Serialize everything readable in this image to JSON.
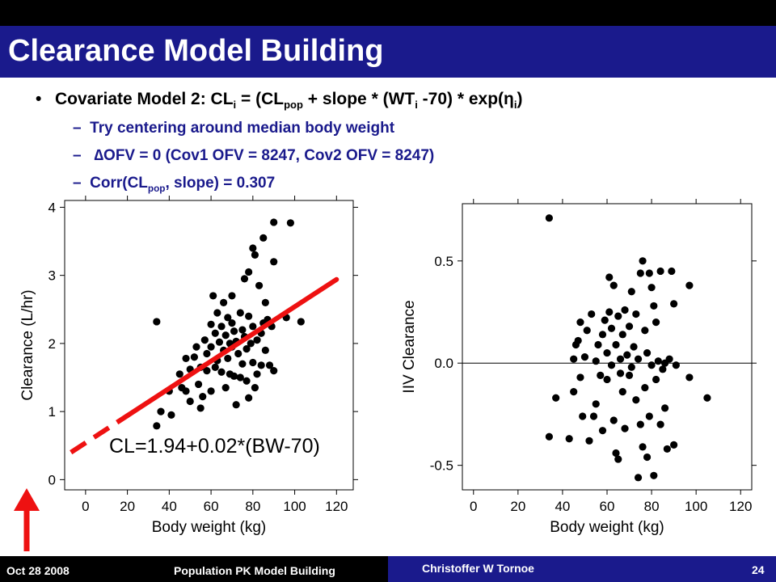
{
  "slide": {
    "title": "Clearance Model Building",
    "bullet": {
      "prefix": "Covariate Model 2: CL",
      "sub1": "i",
      "mid1": " = (CL",
      "sub2": "pop",
      "mid2": " + slope * (WT",
      "sub3": "i",
      "mid3": " -70) * exp(",
      "eta": "η",
      "sub4": "i",
      "suffix": ")"
    },
    "subbullets": [
      {
        "dash": "–",
        "text": "Try centering around median body weight"
      },
      {
        "dash": "–",
        "text": "∆OFV = 0 (Cov1 OFV = 8247, Cov2 OFV = 8247)"
      },
      {
        "dash": "–",
        "prefix": "Corr(CL",
        "sub": "pop",
        "suffix": ", slope) = 0.307"
      }
    ]
  },
  "footer": {
    "date": "Oct 28 2008",
    "course": "Population PK Model Building",
    "author": "Christoffer W Tornoe",
    "page": "24"
  },
  "colors": {
    "title_bar": "#1a1a8c",
    "subbullet_text": "#1a1a8c",
    "fit_line": "#ee1111",
    "arrow": "#ee1111"
  },
  "chart_data": [
    {
      "type": "scatter",
      "xlabel": "Body weight (kg)",
      "ylabel": "Clearance (L/hr)",
      "xlim": [
        -10,
        128
      ],
      "ylim": [
        -0.15,
        4.1
      ],
      "xticks": [
        "0",
        "20",
        "40",
        "60",
        "80",
        "100",
        "120"
      ],
      "yticks": [
        "0",
        "1",
        "2",
        "3",
        "4"
      ],
      "annotation": "CL=1.94+0.02*(BW-70)",
      "fit_line": {
        "intercept": 1.94,
        "slope": 0.02,
        "center": 70,
        "solid_range": [
          20,
          120
        ],
        "dashed_range": [
          -7,
          20
        ]
      },
      "points": [
        [
          34,
          2.32
        ],
        [
          34,
          0.79
        ],
        [
          36,
          1.0
        ],
        [
          40,
          1.3
        ],
        [
          41,
          0.95
        ],
        [
          45,
          1.55
        ],
        [
          46,
          1.35
        ],
        [
          48,
          1.3
        ],
        [
          48,
          1.78
        ],
        [
          50,
          1.15
        ],
        [
          50,
          1.62
        ],
        [
          52,
          1.8
        ],
        [
          53,
          1.95
        ],
        [
          54,
          1.4
        ],
        [
          55,
          1.05
        ],
        [
          55,
          1.65
        ],
        [
          56,
          1.22
        ],
        [
          57,
          2.05
        ],
        [
          58,
          1.6
        ],
        [
          58,
          1.85
        ],
        [
          60,
          1.95
        ],
        [
          60,
          1.3
        ],
        [
          60,
          2.28
        ],
        [
          61,
          2.7
        ],
        [
          62,
          1.65
        ],
        [
          62,
          2.15
        ],
        [
          63,
          2.45
        ],
        [
          63,
          1.75
        ],
        [
          64,
          2.02
        ],
        [
          65,
          1.58
        ],
        [
          65,
          2.25
        ],
        [
          66,
          1.9
        ],
        [
          66,
          2.6
        ],
        [
          67,
          1.35
        ],
        [
          67,
          2.12
        ],
        [
          68,
          1.78
        ],
        [
          68,
          2.38
        ],
        [
          69,
          2.0
        ],
        [
          69,
          1.55
        ],
        [
          70,
          1.95
        ],
        [
          70,
          2.7
        ],
        [
          70,
          2.3
        ],
        [
          71,
          1.52
        ],
        [
          71,
          2.18
        ],
        [
          72,
          1.1
        ],
        [
          72,
          2.03
        ],
        [
          73,
          1.85
        ],
        [
          74,
          1.5
        ],
        [
          74,
          2.45
        ],
        [
          75,
          2.2
        ],
        [
          75,
          1.7
        ],
        [
          76,
          2.95
        ],
        [
          76,
          2.1
        ],
        [
          77,
          1.92
        ],
        [
          77,
          1.45
        ],
        [
          78,
          3.05
        ],
        [
          78,
          2.4
        ],
        [
          78,
          1.2
        ],
        [
          79,
          2.0
        ],
        [
          80,
          1.72
        ],
        [
          80,
          2.25
        ],
        [
          80,
          3.4
        ],
        [
          81,
          1.35
        ],
        [
          81,
          3.3
        ],
        [
          82,
          2.05
        ],
        [
          82,
          1.55
        ],
        [
          83,
          2.85
        ],
        [
          84,
          1.68
        ],
        [
          84,
          2.15
        ],
        [
          85,
          2.3
        ],
        [
          85,
          3.55
        ],
        [
          86,
          2.6
        ],
        [
          86,
          1.9
        ],
        [
          87,
          2.35
        ],
        [
          88,
          1.68
        ],
        [
          89,
          2.25
        ],
        [
          90,
          1.6
        ],
        [
          90,
          3.2
        ],
        [
          90,
          3.78
        ],
        [
          96,
          2.38
        ],
        [
          98,
          3.77
        ],
        [
          103,
          2.32
        ]
      ]
    },
    {
      "type": "scatter",
      "xlabel": "Body weight (kg)",
      "ylabel": "IIV Clearance",
      "xlim": [
        -5,
        125
      ],
      "ylim": [
        -0.62,
        0.78
      ],
      "xticks": [
        "0",
        "20",
        "40",
        "60",
        "80",
        "100",
        "120"
      ],
      "yticks": [
        "-0.5",
        "0.0",
        "0.5"
      ],
      "reference_line": 0.0,
      "points": [
        [
          34,
          0.71
        ],
        [
          34,
          -0.36
        ],
        [
          37,
          -0.17
        ],
        [
          43,
          -0.37
        ],
        [
          45,
          0.02
        ],
        [
          45,
          -0.14
        ],
        [
          46,
          0.09
        ],
        [
          47,
          0.11
        ],
        [
          48,
          0.2
        ],
        [
          48,
          -0.07
        ],
        [
          49,
          -0.26
        ],
        [
          50,
          0.03
        ],
        [
          51,
          0.16
        ],
        [
          52,
          -0.38
        ],
        [
          53,
          0.24
        ],
        [
          54,
          -0.26
        ],
        [
          55,
          -0.2
        ],
        [
          55,
          0.01
        ],
        [
          56,
          0.09
        ],
        [
          57,
          -0.06
        ],
        [
          58,
          0.14
        ],
        [
          58,
          -0.33
        ],
        [
          59,
          0.21
        ],
        [
          60,
          0.05
        ],
        [
          60,
          -0.08
        ],
        [
          61,
          0.42
        ],
        [
          61,
          0.25
        ],
        [
          62,
          0.17
        ],
        [
          62,
          -0.01
        ],
        [
          63,
          0.38
        ],
        [
          63,
          -0.28
        ],
        [
          64,
          -0.44
        ],
        [
          64,
          0.09
        ],
        [
          65,
          -0.47
        ],
        [
          65,
          0.23
        ],
        [
          66,
          0.02
        ],
        [
          66,
          -0.05
        ],
        [
          67,
          0.14
        ],
        [
          67,
          -0.14
        ],
        [
          68,
          0.26
        ],
        [
          68,
          -0.32
        ],
        [
          69,
          0.04
        ],
        [
          70,
          -0.06
        ],
        [
          70,
          0.18
        ],
        [
          71,
          0.35
        ],
        [
          71,
          -0.02
        ],
        [
          72,
          0.08
        ],
        [
          73,
          0.24
        ],
        [
          73,
          -0.18
        ],
        [
          74,
          0.02
        ],
        [
          74,
          -0.56
        ],
        [
          75,
          0.44
        ],
        [
          75,
          -0.3
        ],
        [
          76,
          0.5
        ],
        [
          76,
          -0.41
        ],
        [
          77,
          0.16
        ],
        [
          77,
          -0.12
        ],
        [
          78,
          -0.46
        ],
        [
          78,
          0.05
        ],
        [
          79,
          0.44
        ],
        [
          79,
          -0.26
        ],
        [
          80,
          0.37
        ],
        [
          80,
          -0.01
        ],
        [
          81,
          0.28
        ],
        [
          81,
          -0.55
        ],
        [
          82,
          -0.08
        ],
        [
          82,
          0.2
        ],
        [
          83,
          0.01
        ],
        [
          84,
          -0.3
        ],
        [
          84,
          0.45
        ],
        [
          85,
          -0.03
        ],
        [
          86,
          0.0
        ],
        [
          86,
          -0.22
        ],
        [
          87,
          -0.42
        ],
        [
          88,
          0.02
        ],
        [
          89,
          0.45
        ],
        [
          90,
          0.29
        ],
        [
          90,
          -0.4
        ],
        [
          91,
          -0.01
        ],
        [
          97,
          0.38
        ],
        [
          97,
          -0.07
        ],
        [
          105,
          -0.17
        ]
      ]
    }
  ]
}
